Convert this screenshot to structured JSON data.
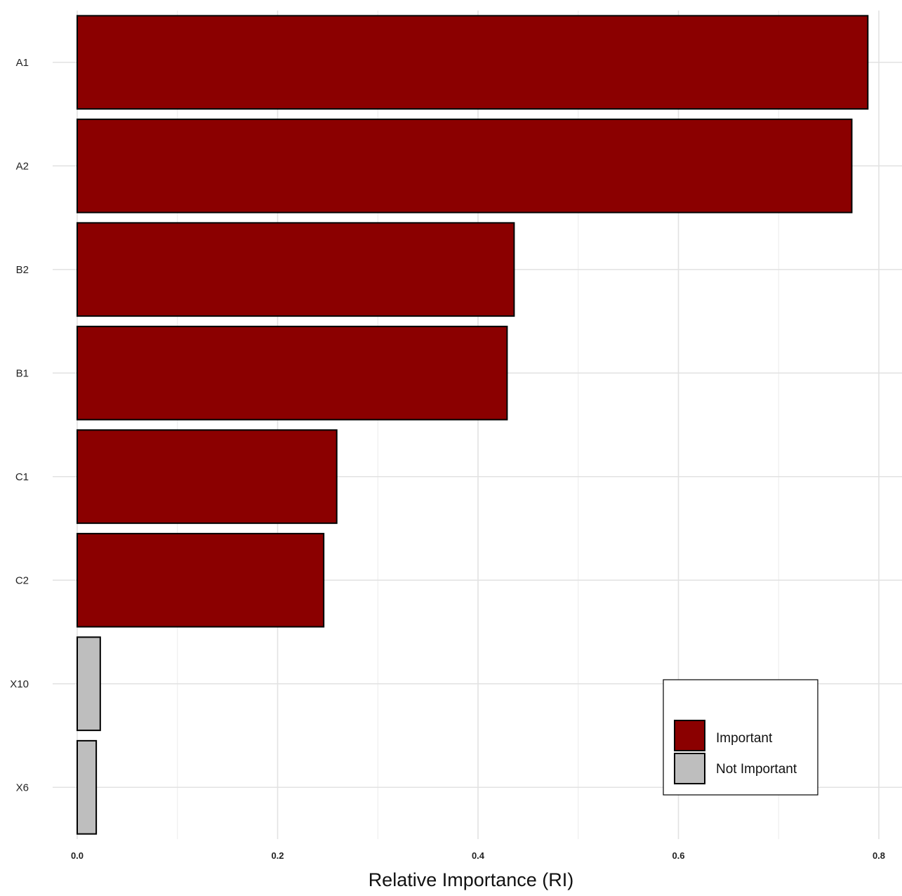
{
  "chart_data": {
    "type": "bar",
    "orientation": "horizontal",
    "title": "",
    "xlabel": "Relative Importance (RI)",
    "ylabel": "",
    "xlim": [
      0,
      0.8
    ],
    "x_ticks": [
      {
        "value": 0.0,
        "label": "0.0"
      },
      {
        "value": 0.2,
        "label": "0.2"
      },
      {
        "value": 0.4,
        "label": "0.4"
      },
      {
        "value": 0.6,
        "label": "0.6"
      },
      {
        "value": 0.8,
        "label": "0.8"
      }
    ],
    "minor_gridlines": [
      0.1,
      0.3,
      0.5,
      0.7
    ],
    "grid": true,
    "categories": [
      "A1",
      "A2",
      "B2",
      "B1",
      "C1",
      "C2",
      "X10",
      "X6"
    ],
    "values": [
      0.789,
      0.773,
      0.436,
      0.429,
      0.259,
      0.246,
      0.023,
      0.019
    ],
    "groups": [
      "Important",
      "Important",
      "Important",
      "Important",
      "Important",
      "Important",
      "Not Important",
      "Not Important"
    ],
    "legend": {
      "position": "bottom-right",
      "entries": [
        {
          "label": "Important",
          "color": "#8B0000"
        },
        {
          "label": "Not Important",
          "color": "#BEBEBE"
        }
      ]
    }
  }
}
